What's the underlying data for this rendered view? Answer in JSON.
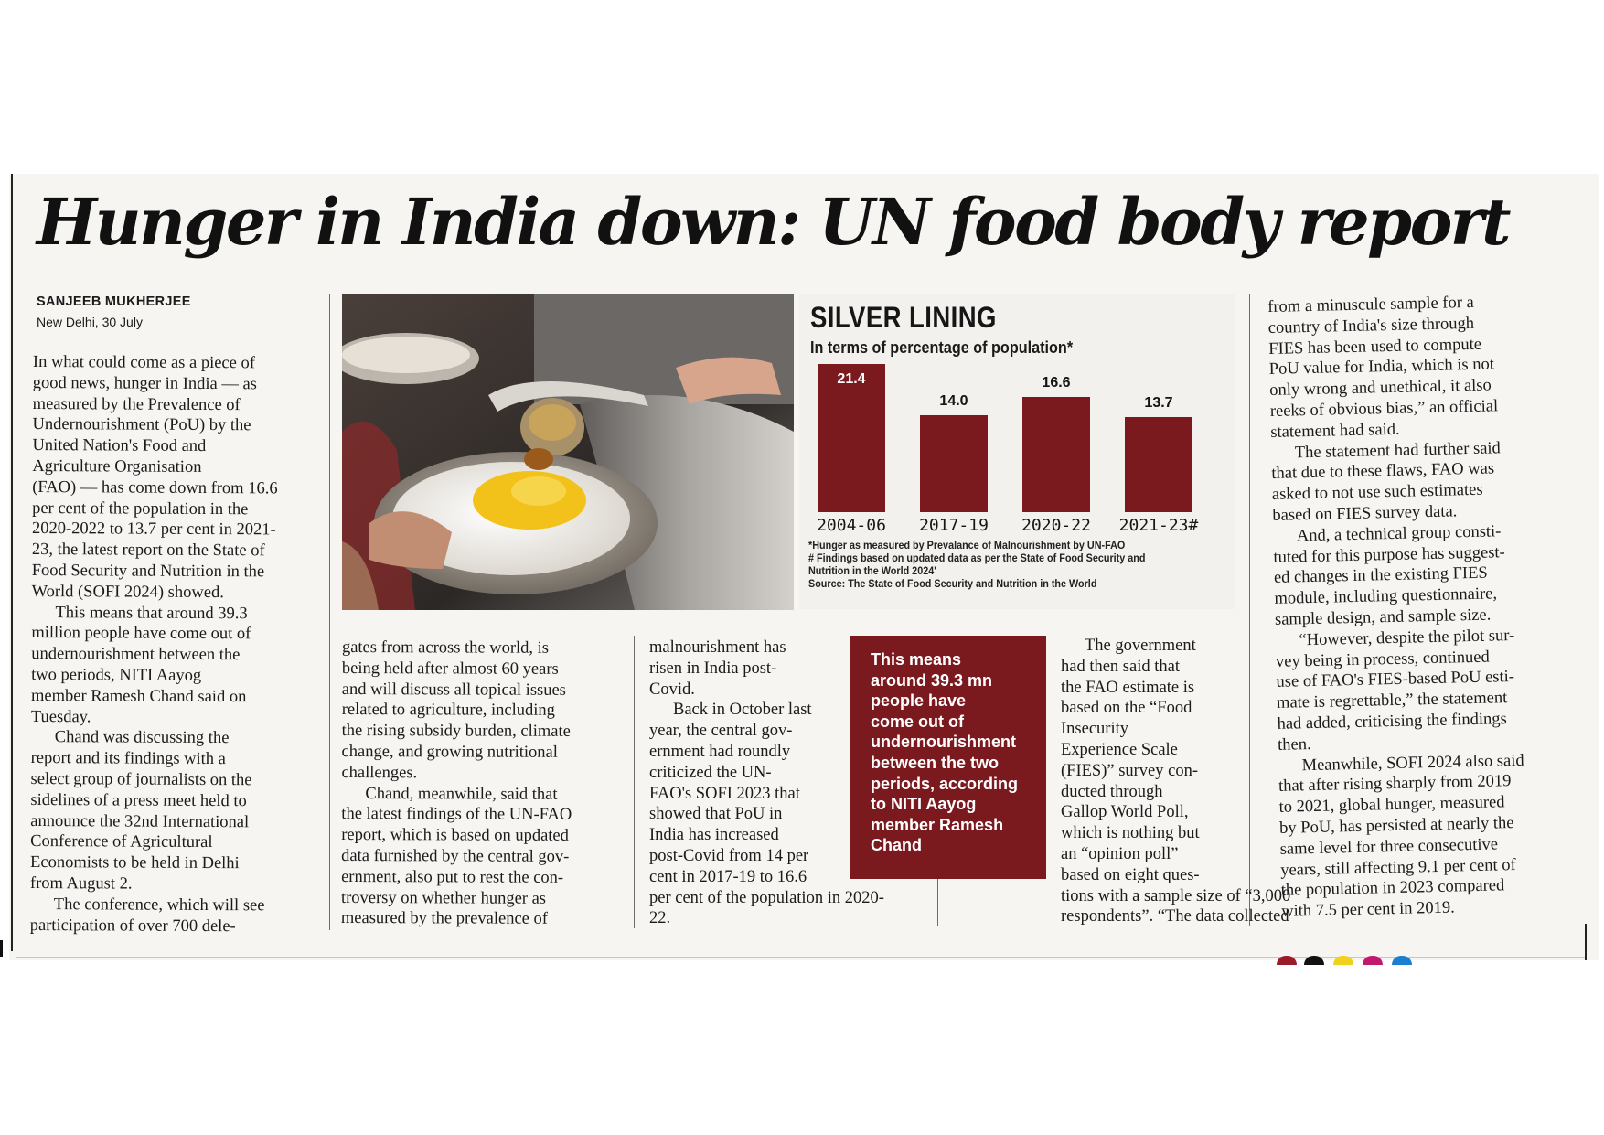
{
  "article": {
    "headline": "Hunger in India down: UN food body report",
    "byline": "SANJEEB MUKHERJEE",
    "dateline": "New Delhi, 30 July"
  },
  "columns": {
    "col1": [
      "In what could come as a piece of",
      "good news, hunger in India — as",
      "measured by the Prevalence of",
      "Undernourishment (PoU) by the",
      "United Nation's Food and",
      "Agriculture Organisation",
      "(FAO) — has come down from 16.6",
      "per cent of the population in the",
      "2020-2022 to 13.7 per cent in 2021-",
      "23, the latest report on the State of",
      "Food Security and Nutrition in the",
      "World (SOFI 2024) showed.",
      "This means that around 39.3",
      "million people have come out of",
      "undernourishment between the",
      "two periods, NITI Aayog",
      "member Ramesh Chand said on",
      "Tuesday.",
      "Chand was discussing the",
      "report and its findings with a",
      "select group of journalists on the",
      "sidelines of a press meet held to",
      "announce the 32nd International",
      "Conference of Agricultural",
      "Economists to be held in Delhi",
      "from August 2.",
      "The conference, which will see",
      "participation of over 700 dele-"
    ],
    "col2": [
      "gates from across the world, is",
      "being held after almost 60 years",
      "and will discuss all topical issues",
      "related to agriculture, including",
      "the rising subsidy burden, climate",
      "change, and growing nutritional",
      "challenges.",
      "Chand, meanwhile, said that",
      "the latest findings of the UN-FAO",
      "report, which is based on updated",
      "data furnished by the central gov-",
      "ernment, also put to rest the con-",
      "troversy on whether hunger as",
      "measured by the prevalence of"
    ],
    "col3": [
      "malnourishment has",
      "risen in India post-",
      "Covid.",
      "Back in October last",
      "year, the central gov-",
      "ernment had roundly",
      "criticized the UN-",
      "FAO's SOFI 2023 that",
      "showed that PoU in",
      "India has increased",
      "post-Covid from 14 per",
      "cent in 2017-19 to 16.6",
      "per cent of the population in 2020-",
      "22."
    ],
    "col4": [
      "The government",
      "had then said that",
      "the FAO estimate is",
      "based on the “Food",
      "Insecurity",
      "Experience Scale",
      "(FIES)” survey con-",
      "ducted through",
      "Gallop World Poll,",
      "which is nothing but",
      "an “opinion poll”",
      "based on eight ques-",
      "tions with a sample size of “3,000",
      "respondents”. “The data collected"
    ],
    "col5": [
      "from a minuscule sample for a",
      "country of India's size through",
      "FIES has been used to compute",
      "PoU value for India, which is not",
      "only wrong and unethical, it also",
      "reeks of obvious bias,” an official",
      "statement had said.",
      "The statement had further said",
      "that due to these flaws, FAO was",
      "asked to not use such estimates",
      "based on FIES survey data.",
      "And, a technical group consti-",
      "tuted for this purpose has suggest-",
      "ed changes in the existing FIES",
      "module, including questionnaire,",
      "sample design, and sample size.",
      "“However, despite the pilot sur-",
      "vey being in process, continued",
      "use of FAO's FIES-based PoU esti-",
      "mate is regrettable,” the statement",
      "had added, criticising the findings",
      "then.",
      "Meanwhile, SOFI 2024 also said",
      "that after rising sharply from 2019",
      "to 2021, global hunger, measured",
      "by PoU, has persisted at nearly the",
      "same level for three consecutive",
      "years, still affecting 9.1 per cent of",
      "the population in 2023 compared",
      "with 7.5 per cent in 2019."
    ]
  },
  "pullquote": {
    "lines": [
      "This means",
      "around 39.3 mn",
      "people have",
      "come out of",
      "undernourishment",
      "between the two",
      "periods, according",
      "to NITI Aayog",
      "member Ramesh",
      "Chand"
    ]
  },
  "chart_data": {
    "type": "bar",
    "title": "SILVER LINING",
    "subtitle": "In terms of percentage of population*",
    "categories": [
      "2004-06",
      "2017-19",
      "2020-22",
      "2021-23#"
    ],
    "values": [
      21.4,
      14.0,
      16.6,
      13.7
    ],
    "value_labels": [
      "21.4",
      "14.0",
      "16.6",
      "13.7"
    ],
    "bar_color": "#7a1a1f",
    "xlabel": "",
    "ylabel": "",
    "grid": false,
    "notes": [
      "*Hunger as measured by Prevalance of Malnourishment by UN-FAO",
      "# Findings based on updated data as per the State of Food Security and",
      "Nutrition in the World 2024'",
      "Source: The State of Food Security and Nutrition in the World"
    ]
  },
  "colors": {
    "accent": "#7a1a1f",
    "paper": "#f6f5f2",
    "text": "#1b1b1b"
  }
}
